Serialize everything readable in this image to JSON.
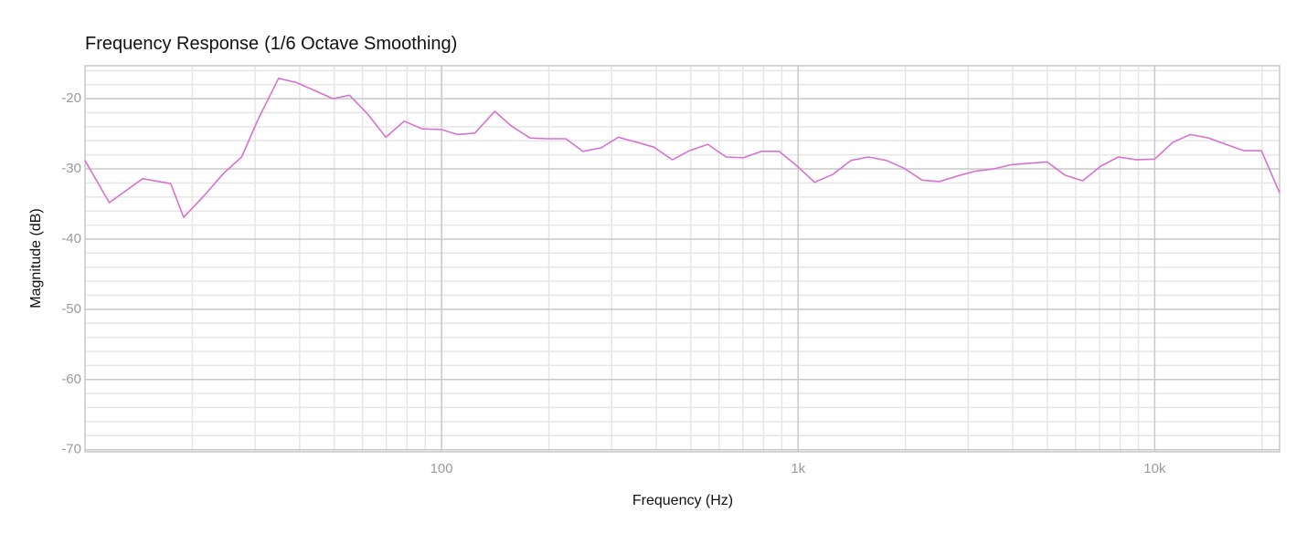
{
  "chart_data": {
    "type": "line",
    "title": "Frequency Response",
    "subtitle": "(1/6 Octave Smoothing)",
    "x_label": "Frequency (Hz)",
    "y_label": "Magnitude (dB)",
    "x_scale": "log",
    "grid": true,
    "xlim": [
      10,
      22400
    ],
    "ylim": [
      -70.3,
      -15.3
    ],
    "xticks": [
      100,
      {
        "value": 1000,
        "label": "1k"
      },
      {
        "value": 10000,
        "label": "10k"
      }
    ],
    "yticks": [
      -20,
      -30,
      -40,
      -50,
      -60,
      -70
    ],
    "xminor_ticks": [
      20,
      30,
      40,
      50,
      60,
      70,
      80,
      90,
      200,
      300,
      400,
      500,
      600,
      700,
      800,
      900,
      2000,
      3000,
      4000,
      5000,
      6000,
      7000,
      8000,
      9000,
      20000
    ],
    "yminor_ticks": [
      -16,
      -18,
      -22,
      -24,
      -26,
      -28,
      -32,
      -34,
      -36,
      -38,
      -42,
      -44,
      -46,
      -48,
      -52,
      -54,
      -56,
      -58,
      -62,
      -64,
      -66,
      -68
    ],
    "x": [
      10.0,
      11.7,
      14.5,
      15.7,
      17.4,
      18.9,
      21.5,
      24.5,
      27.5,
      30.6,
      34.9,
      39.2,
      49.6,
      55.2,
      62.1,
      69.8,
      78.5,
      88.3,
      100,
      111,
      124,
      141,
      157,
      177,
      198,
      223,
      249,
      280,
      313,
      353,
      394,
      444,
      496,
      558,
      628,
      703,
      790,
      884,
      994,
      1112,
      1250,
      1406,
      1574,
      1770,
      1982,
      2228,
      2491,
      2803,
      3155,
      3527,
      3966,
      4436,
      4989,
      5610,
      6280,
      7063,
      7905,
      8890,
      10000,
      11250,
      12590,
      14160,
      15820,
      17810,
      19920,
      22400
    ],
    "series": [
      {
        "color": "#d872cf",
        "values": [
          -28.8,
          -34.8,
          -31.4,
          -31.7,
          -32.1,
          -36.9,
          -33.9,
          -30.6,
          -28.3,
          -22.9,
          -17.1,
          -17.7,
          -20.0,
          -19.5,
          -22.2,
          -25.5,
          -23.2,
          -24.3,
          -24.4,
          -25.1,
          -24.9,
          -21.8,
          -23.9,
          -25.6,
          -25.7,
          -25.7,
          -27.5,
          -27.0,
          -25.5,
          -26.2,
          -26.9,
          -28.7,
          -27.4,
          -26.5,
          -28.3,
          -28.4,
          -27.5,
          -27.5,
          -29.6,
          -31.9,
          -30.8,
          -28.8,
          -28.3,
          -28.8,
          -29.9,
          -31.6,
          -31.8,
          -31.0,
          -30.3,
          -30.0,
          -29.4,
          -29.2,
          -29.0,
          -30.9,
          -31.7,
          -29.6,
          -28.3,
          -28.7,
          -28.6,
          -26.2,
          -25.1,
          -25.6,
          -26.5,
          -27.4,
          -27.4,
          -33.4
        ]
      }
    ]
  }
}
